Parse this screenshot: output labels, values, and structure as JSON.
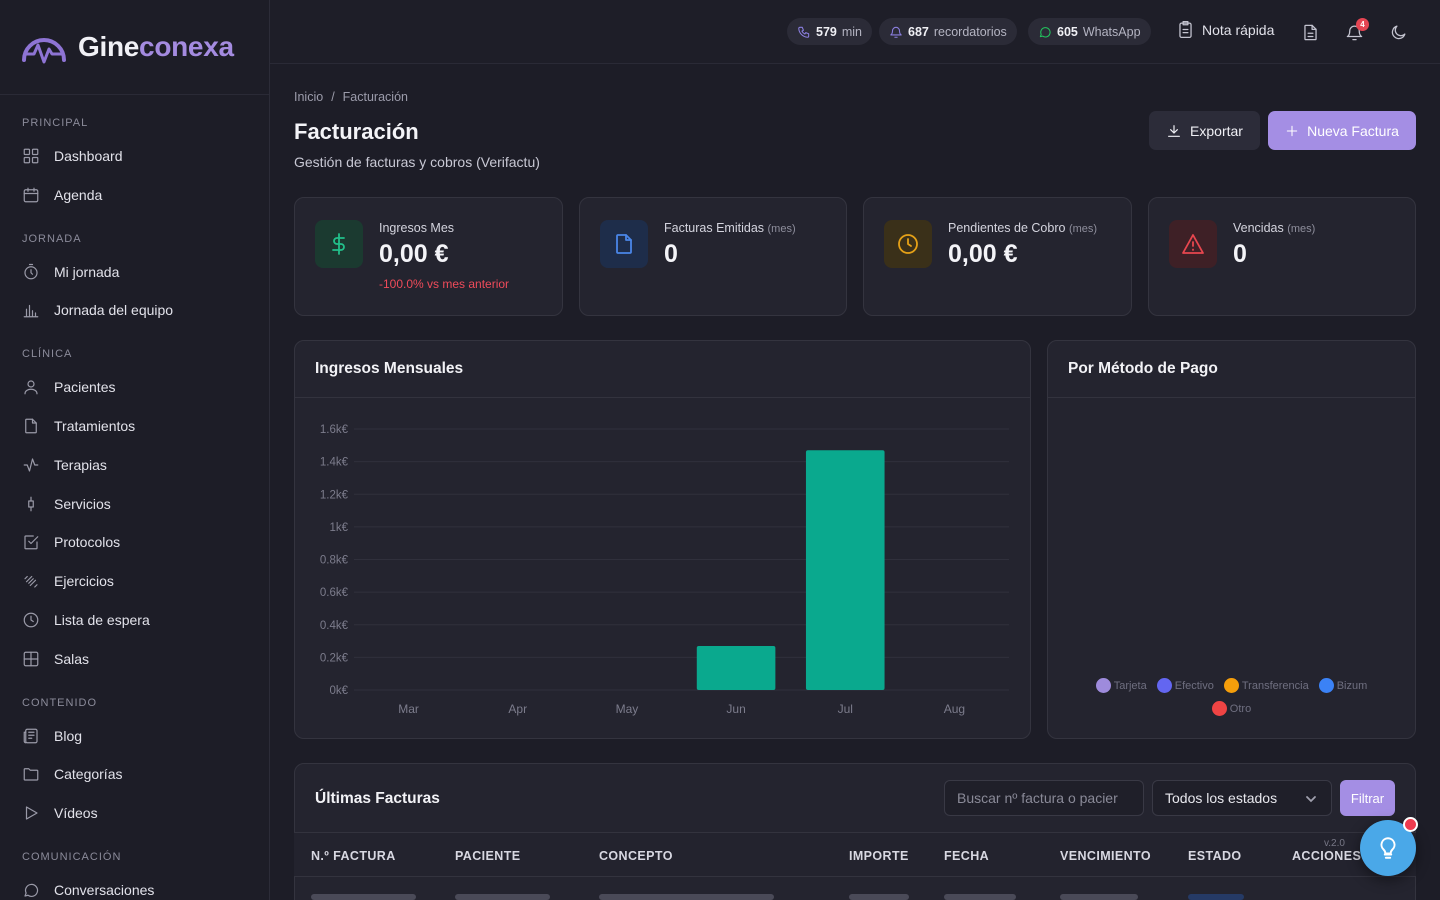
{
  "brand": {
    "part1": "Gine",
    "part2": "conexa"
  },
  "sidebar": {
    "sections": [
      {
        "title": "PRINCIPAL",
        "items": [
          {
            "label": "Dashboard",
            "icon": "dashboard-icon"
          },
          {
            "label": "Agenda",
            "icon": "calendar-icon"
          }
        ]
      },
      {
        "title": "JORNADA",
        "items": [
          {
            "label": "Mi jornada",
            "icon": "timer-icon"
          },
          {
            "label": "Jornada del equipo",
            "icon": "bar-chart-icon"
          }
        ]
      },
      {
        "title": "CLÍNICA",
        "items": [
          {
            "label": "Pacientes",
            "icon": "user-icon"
          },
          {
            "label": "Tratamientos",
            "icon": "file-icon"
          },
          {
            "label": "Terapias",
            "icon": "activity-icon"
          },
          {
            "label": "Servicios",
            "icon": "syringe-icon"
          },
          {
            "label": "Protocolos",
            "icon": "checklist-icon"
          },
          {
            "label": "Ejercicios",
            "icon": "dumbbell-icon"
          },
          {
            "label": "Lista de espera",
            "icon": "clock-icon"
          },
          {
            "label": "Salas",
            "icon": "grid-icon"
          }
        ]
      },
      {
        "title": "CONTENIDO",
        "items": [
          {
            "label": "Blog",
            "icon": "newspaper-icon"
          },
          {
            "label": "Categorías",
            "icon": "folder-icon"
          },
          {
            "label": "Vídeos",
            "icon": "play-icon"
          }
        ]
      },
      {
        "title": "COMUNICACIÓN",
        "items": [
          {
            "label": "Conversaciones",
            "icon": "chat-icon"
          }
        ]
      }
    ]
  },
  "topbar": {
    "minutes": {
      "value": "579",
      "unit": "min"
    },
    "reminders": {
      "value": "687",
      "unit": "recordatorios"
    },
    "whatsapp": {
      "value": "605",
      "unit": "WhatsApp"
    },
    "quick_note": "Nota rápida",
    "notifications_count": "4"
  },
  "breadcrumb": {
    "home": "Inicio",
    "separator": "/",
    "current": "Facturación"
  },
  "page": {
    "title": "Facturación",
    "subtitle": "Gestión de facturas y cobros (Verifactu)"
  },
  "actions": {
    "export": "Exportar",
    "new_invoice": "Nueva Factura"
  },
  "stats": [
    {
      "label": "Ingresos Mes",
      "suffix": "",
      "value": "0,00 €",
      "trend": "-100.0% vs mes anterior",
      "color": "#22c08a",
      "bg": "#1b3a30"
    },
    {
      "label": "Facturas Emitidas",
      "suffix": "(mes)",
      "value": "0",
      "trend": "",
      "color": "#4a86e8",
      "bg": "#1e2d4a"
    },
    {
      "label": "Pendientes de Cobro",
      "suffix": "(mes)",
      "value": "0,00 €",
      "trend": "",
      "color": "#e5a117",
      "bg": "#3a3019"
    },
    {
      "label": "Vencidas",
      "suffix": "(mes)",
      "value": "0",
      "trend": "",
      "color": "#e8474f",
      "bg": "#3e2026"
    }
  ],
  "revenue_panel": {
    "title": "Ingresos Mensuales"
  },
  "chart_data": {
    "type": "bar",
    "categories": [
      "Mar",
      "Apr",
      "May",
      "Jun",
      "Jul",
      "Aug"
    ],
    "values": [
      0,
      0,
      0,
      270,
      1470,
      0
    ],
    "ylim": [
      0,
      1600
    ],
    "yticks": [
      "0k€",
      "0.2k€",
      "0.4k€",
      "0.6k€",
      "0.8k€",
      "1k€",
      "1.2k€",
      "1.4k€",
      "1.6k€"
    ],
    "bar_color": "#0aa98e",
    "grid": true
  },
  "payment_panel": {
    "title": "Por Método de Pago",
    "legend": [
      {
        "label": "Tarjeta",
        "color": "#9e8bdc"
      },
      {
        "label": "Efectivo",
        "color": "#6366f1"
      },
      {
        "label": "Transferencia",
        "color": "#f59e0b"
      },
      {
        "label": "Bizum",
        "color": "#3b82f6"
      },
      {
        "label": "Otro",
        "color": "#ef4444"
      }
    ]
  },
  "invoices": {
    "title": "Últimas Facturas",
    "search_placeholder": "Buscar nº factura o pacier",
    "status_filter": "Todos los estados",
    "filter_button": "Filtrar",
    "columns": [
      "N.º FACTURA",
      "PACIENTE",
      "CONCEPTO",
      "IMPORTE",
      "FECHA",
      "VENCIMIENTO",
      "ESTADO",
      "ACCIONES"
    ]
  },
  "version": "v.2.0"
}
